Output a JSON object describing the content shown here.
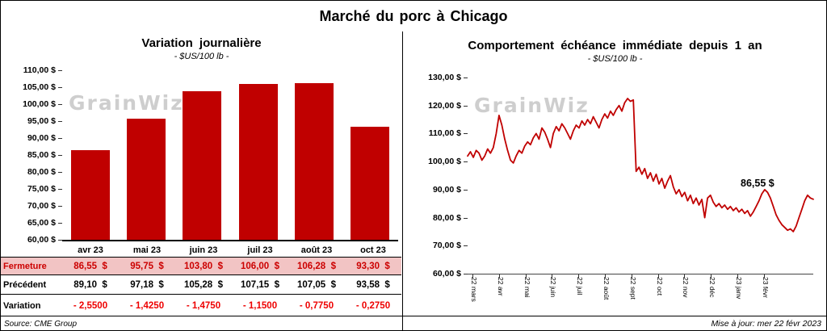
{
  "page": {
    "title": "Marché du porc à Chicago",
    "source_note": "Source: CME Group",
    "update_note": "Mise à jour: mer 22 févr 2023",
    "watermark": "GrainWiz"
  },
  "left_chart": {
    "title": "Variation journalière",
    "subtitle": "- $US/100 lb -"
  },
  "right_chart": {
    "title": "Comportement échéance immédiate depuis 1 an",
    "subtitle": "- $US/100 lb -",
    "last_value_label": "86,55 $"
  },
  "chart_data": [
    {
      "type": "bar",
      "title": "Variation journalière",
      "subtitle": "- $US/100 lb -",
      "categories": [
        "avr 23",
        "mai 23",
        "juin 23",
        "juil 23",
        "août 23",
        "oct 23"
      ],
      "values": [
        86.55,
        95.75,
        103.8,
        106.0,
        106.28,
        93.3
      ],
      "ylim": [
        60,
        110
      ],
      "ytick_labels": [
        "110,00 $",
        "105,00 $",
        "100,00 $",
        "95,00 $",
        "90,00 $",
        "85,00 $",
        "80,00 $",
        "75,00 $",
        "70,00 $",
        "65,00 $",
        "60,00 $"
      ],
      "bar_color": "#C00000",
      "grid": false,
      "legend": false
    },
    {
      "type": "line",
      "title": "Comportement échéance immédiate depuis 1 an",
      "subtitle": "- $US/100 lb -",
      "x_labels": [
        "22 mars",
        "22 avr",
        "22 mai",
        "22 juin",
        "22 juil",
        "22 août",
        "22 sept",
        "22 oct",
        "22 nov",
        "22 déc",
        "23 janv",
        "23 févr"
      ],
      "values": [
        102.0,
        103.5,
        101.5,
        104.0,
        103.0,
        100.5,
        102.0,
        104.5,
        103.0,
        105.0,
        110.0,
        116.5,
        113.0,
        108.0,
        104.0,
        100.5,
        99.5,
        102.0,
        104.0,
        103.0,
        105.5,
        107.0,
        106.0,
        108.5,
        110.0,
        108.0,
        112.0,
        110.5,
        108.0,
        105.0,
        110.0,
        112.5,
        111.0,
        113.5,
        112.0,
        110.0,
        108.0,
        111.0,
        113.0,
        112.0,
        114.5,
        113.0,
        115.0,
        113.5,
        116.0,
        114.0,
        112.0,
        115.0,
        117.0,
        115.5,
        118.0,
        116.5,
        118.5,
        120.0,
        118.0,
        121.0,
        122.5,
        121.5,
        122.0,
        96.5,
        98.0,
        95.5,
        97.5,
        94.0,
        96.0,
        93.0,
        95.5,
        92.0,
        94.0,
        90.5,
        93.0,
        95.0,
        91.0,
        88.5,
        90.0,
        87.5,
        89.0,
        86.0,
        88.0,
        85.0,
        87.0,
        84.5,
        86.5,
        80.0,
        87.0,
        88.0,
        85.5,
        84.0,
        85.0,
        83.5,
        84.5,
        83.0,
        84.0,
        82.5,
        83.5,
        82.0,
        83.0,
        81.5,
        82.5,
        80.5,
        82.0,
        84.0,
        86.0,
        88.5,
        90.0,
        89.0,
        87.0,
        84.0,
        81.0,
        79.0,
        77.5,
        76.5,
        75.5,
        76.0,
        75.0,
        77.0,
        80.0,
        83.0,
        86.0,
        88.0,
        87.0,
        86.55
      ],
      "ylim": [
        60,
        130
      ],
      "ytick_labels": [
        "130,00 $",
        "120,00 $",
        "110,00 $",
        "100,00 $",
        "90,00 $",
        "80,00 $",
        "70,00 $",
        "60,00 $"
      ],
      "line_color": "#C00000",
      "annotation": {
        "text": "86,55 $",
        "value": 86.55
      },
      "grid": false,
      "legend": false
    },
    {
      "type": "table",
      "columns": [
        "avr 23",
        "mai 23",
        "juin 23",
        "juil 23",
        "août 23",
        "oct 23"
      ],
      "rows": [
        {
          "key": "fermeture",
          "label": "Fermeture",
          "values": [
            "86,55  $",
            "95,75  $",
            "103,80  $",
            "106,00  $",
            "106,28  $",
            "93,30  $"
          ]
        },
        {
          "key": "precedent",
          "label": "Précédent",
          "values": [
            "89,10  $",
            "97,18  $",
            "105,28  $",
            "107,15  $",
            "107,05  $",
            "93,58  $"
          ]
        },
        {
          "key": "variation",
          "label": "Variation",
          "values": [
            "- 2,5500",
            "- 1,4250",
            "- 1,4750",
            "- 1,1500",
            "- 0,7750",
            "- 0,2750"
          ]
        }
      ]
    }
  ]
}
